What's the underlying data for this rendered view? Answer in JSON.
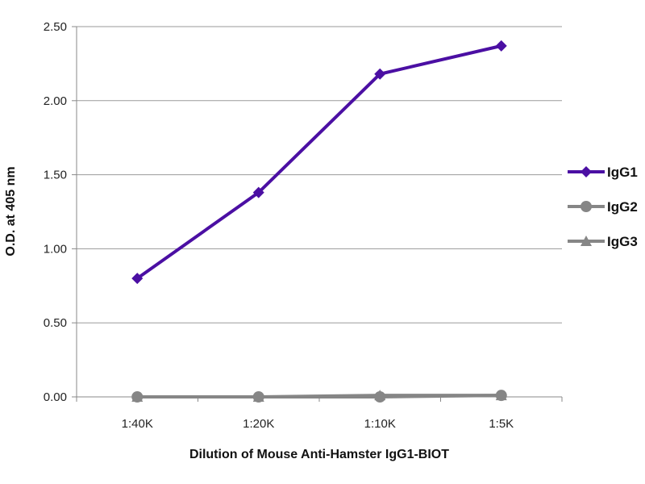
{
  "chart_data": {
    "type": "line",
    "title": "",
    "xlabel": "Dilution of Mouse Anti-Hamster IgG1-BIOT",
    "ylabel": "O.D. at 405 nm",
    "categories": [
      "1:40K",
      "1:20K",
      "1:10K",
      "1:5K"
    ],
    "ylim": [
      0,
      2.5
    ],
    "yticks": [
      "0.00",
      "0.50",
      "1.00",
      "1.50",
      "2.00",
      "2.50"
    ],
    "grid": true,
    "legend_position": "right",
    "series": [
      {
        "name": "IgG1",
        "values": [
          0.8,
          1.38,
          2.18,
          2.37
        ],
        "color": "#4b0fa3",
        "marker": "diamond"
      },
      {
        "name": "IgG2",
        "values": [
          0.0,
          0.0,
          0.0,
          0.01
        ],
        "color": "#868686",
        "marker": "circle"
      },
      {
        "name": "IgG3",
        "values": [
          0.0,
          0.0,
          0.01,
          0.01
        ],
        "color": "#868686",
        "marker": "triangle"
      }
    ]
  }
}
